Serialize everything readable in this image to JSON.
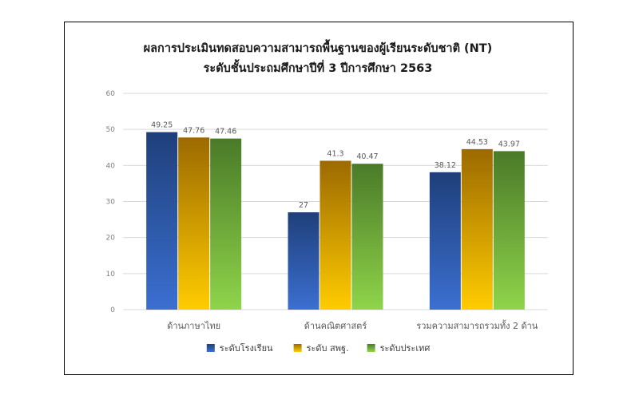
{
  "chart_data": {
    "type": "bar",
    "title": "ผลการประเมินทดสอบความสามารถพื้นฐานของผู้เรียนระดับชาติ (NT)",
    "subtitle": "ระดับชั้นประถมศึกษาปีที่ 3 ปีการศึกษา 2563",
    "categories": [
      "ด้านภาษาไทย",
      "ด้านคณิตศาสตร์",
      "รวมความสามารถรวมทั้ง 2 ด้าน"
    ],
    "series": [
      {
        "name": "ระดับโรงเรียน",
        "values": [
          49.25,
          27,
          38.12
        ],
        "value_labels": [
          "49.25",
          "27",
          "38.12"
        ],
        "color_top": "#1f3f7a",
        "color_bottom": "#3b6fd1"
      },
      {
        "name": "ระดับ สพฐ.",
        "values": [
          47.76,
          41.3,
          44.53
        ],
        "value_labels": [
          "47.76",
          "41.3",
          "44.53"
        ],
        "color_top": "#9c6a00",
        "color_bottom": "#ffcc00"
      },
      {
        "name": "ระดับประเทศ",
        "values": [
          47.46,
          40.47,
          43.97
        ],
        "value_labels": [
          "47.46",
          "40.47",
          "43.97"
        ],
        "color_top": "#4a7a28",
        "color_bottom": "#8fd44a"
      }
    ],
    "yticks": [
      "0",
      "10",
      "20",
      "30",
      "40",
      "50",
      "60"
    ],
    "ylim": [
      0,
      60
    ],
    "xlabel": "",
    "ylabel": "",
    "grid": true,
    "legend_position": "bottom",
    "gridline_color": "#d9d9d9"
  }
}
